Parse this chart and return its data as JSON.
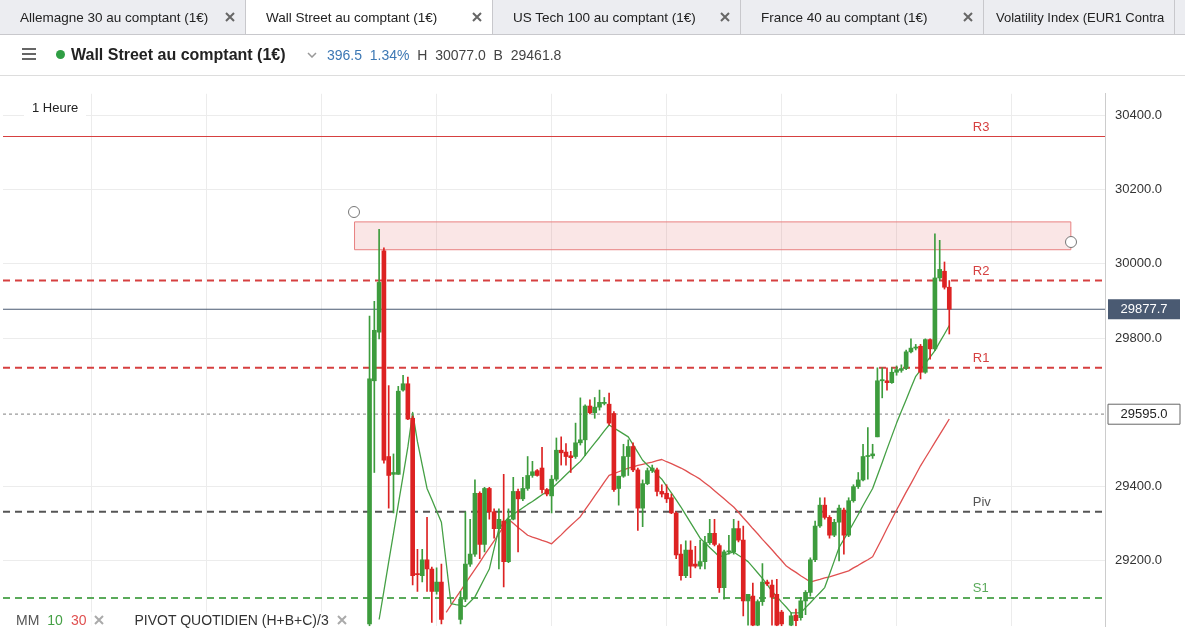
{
  "chart_data": {
    "type": "candlestick",
    "title": "Wall Street au comptant (1€)",
    "subtitle": "396.5 1.34% H 30077.0 B 29461.8",
    "annotations": [
      "Allemagne 30 au comptant (1€)",
      "Wall Street au comptant (1€)",
      "US Tech 100 au comptant (1€)",
      "France 40 au comptant (1€)",
      "Volatility Index (EUR1 Contra",
      "1 Heure",
      "MM",
      "PIVOT QUOTIDIEN (H+B+C)/3"
    ],
    "categories": [
      null,
      null,
      null,
      null,
      null,
      null,
      null,
      null,
      null,
      null,
      null,
      null,
      null,
      null,
      null,
      null,
      null,
      null,
      null,
      null,
      null,
      null,
      null,
      null,
      null,
      null,
      null,
      null,
      null,
      null,
      null,
      null,
      null,
      null,
      null,
      null,
      null,
      null,
      null,
      null,
      null,
      null,
      null,
      null,
      null,
      null,
      null,
      null,
      null,
      null,
      null,
      null,
      null,
      null,
      null,
      null,
      null,
      null,
      null,
      null,
      null,
      null,
      null,
      null,
      null,
      null,
      null,
      null,
      null,
      null,
      null,
      null,
      null,
      null,
      null,
      null,
      null,
      null,
      null,
      null,
      null,
      null,
      null,
      null,
      null,
      null,
      null,
      null,
      null,
      null,
      null,
      null,
      null,
      null,
      null,
      null,
      null,
      null,
      null,
      null,
      null,
      null,
      null,
      null,
      null,
      null,
      null,
      null,
      null,
      null,
      null,
      null,
      null,
      null,
      null,
      null,
      null,
      null,
      null,
      null,
      null,
      null,
      null,
      null,
      null,
      null,
      null,
      null,
      null,
      null,
      null,
      null,
      null,
      null,
      null,
      null,
      null,
      null,
      null,
      null,
      null,
      null,
      null,
      null,
      null,
      null,
      null,
      null,
      null,
      null,
      null,
      null,
      null,
      null,
      null,
      null,
      null,
      null,
      null,
      null,
      null,
      null,
      null,
      null,
      null,
      null,
      null,
      null,
      null,
      null,
      null,
      null,
      null,
      null,
      null,
      null,
      null,
      null,
      null,
      null,
      null,
      null,
      null,
      null,
      null,
      null,
      null,
      null,
      null,
      null,
      null,
      null,
      null,
      null,
      null,
      null,
      null,
      null,
      null,
      null,
      null,
      null,
      null,
      null,
      null,
      null,
      null,
      null,
      null,
      null,
      null,
      null,
      null,
      null,
      null,
      null,
      null,
      null,
      null,
      null,
      null,
      null,
      null,
      null,
      null,
      null,
      null,
      null,
      null,
      null
    ],
    "ohlc": [
      null,
      null,
      null,
      null,
      null,
      null,
      null,
      null,
      null,
      null,
      null,
      null,
      null,
      null,
      null,
      null,
      null,
      null,
      null,
      null,
      null,
      null,
      null,
      null,
      null,
      null,
      null,
      null,
      null,
      null,
      null,
      null,
      null,
      null,
      null,
      null,
      null,
      null,
      null,
      null,
      null,
      null,
      null,
      null,
      null,
      null,
      null,
      null,
      null,
      null,
      null,
      null,
      null,
      null,
      null,
      null,
      null,
      null,
      null,
      null,
      null,
      null,
      null,
      null,
      null,
      null,
      null,
      null,
      null,
      null,
      null,
      null,
      null,
      null,
      null,
      null,
      [
        29030,
        29859,
        29025,
        29690
      ],
      [
        29685,
        29899,
        29438,
        29821
      ],
      [
        29816,
        30093,
        29798,
        29950
      ],
      [
        30035,
        30043,
        29463,
        29471
      ],
      [
        29481,
        29672,
        29342,
        29430
      ],
      [
        29433,
        29488,
        29329,
        29438
      ],
      [
        29433,
        29670,
        29433,
        29657
      ],
      [
        29660,
        29700,
        29657,
        29677
      ],
      [
        29677,
        29695,
        29580,
        29582
      ],
      [
        29584,
        29590,
        29135,
        29160
      ],
      [
        29165,
        29231,
        29118,
        29163
      ],
      [
        29160,
        29231,
        29143,
        29203
      ],
      [
        29203,
        29317,
        29118,
        29178
      ],
      [
        29178,
        29183,
        29034,
        29118
      ],
      [
        29118,
        29181,
        29110,
        29143
      ],
      [
        29143,
        29191,
        29030,
        29042
      ],
      null,
      null,
      null,
      [
        29042,
        29118,
        29030,
        29097
      ],
      [
        29097,
        29332,
        29090,
        29191
      ],
      [
        29191,
        29312,
        29185,
        29218
      ],
      [
        29218,
        29418,
        29212,
        29382
      ],
      [
        29382,
        29386,
        29206,
        29244
      ],
      [
        29244,
        29398,
        29224,
        29395
      ],
      [
        29395,
        29398,
        29312,
        29332
      ],
      [
        29332,
        29340,
        29261,
        29287
      ],
      [
        29287,
        29340,
        29178,
        29312
      ],
      [
        29307,
        29433,
        29130,
        29198
      ],
      [
        29198,
        29340,
        29195,
        29312
      ],
      [
        29312,
        29425,
        29310,
        29387
      ],
      [
        29387,
        29393,
        29224,
        29367
      ],
      [
        29367,
        29425,
        29362,
        29395
      ],
      [
        29395,
        29481,
        29390,
        29430
      ],
      [
        29430,
        29468,
        29425,
        29440
      ],
      [
        29443,
        29446,
        29428,
        29430
      ],
      [
        29450,
        29506,
        29382,
        29392
      ],
      [
        29392,
        29395,
        29375,
        29380
      ],
      [
        29375,
        29430,
        29329,
        29420
      ],
      [
        29420,
        29531,
        29415,
        29498
      ],
      [
        29498,
        29534,
        29458,
        29491
      ],
      [
        29493,
        29516,
        29458,
        29481
      ],
      [
        29483,
        29495,
        29438,
        29478
      ],
      [
        29481,
        29571,
        29476,
        29518
      ],
      [
        29518,
        29639,
        29512,
        29526
      ],
      [
        29526,
        29620,
        29483,
        29617
      ],
      [
        29617,
        29634,
        29596,
        29599
      ],
      [
        29599,
        29640,
        29584,
        29614
      ],
      [
        29614,
        29660,
        29606,
        29627
      ],
      [
        29624,
        29640,
        29620,
        29627
      ],
      [
        29622,
        29652,
        29566,
        29571
      ],
      [
        29597,
        29602,
        29387,
        29392
      ],
      [
        29395,
        29428,
        29350,
        29428
      ],
      [
        29428,
        29514,
        29425,
        29481
      ],
      [
        29481,
        29526,
        29430,
        29508
      ],
      [
        29508,
        29518,
        29440,
        29445
      ],
      [
        29445,
        29450,
        29282,
        29342
      ],
      [
        29342,
        29418,
        29292,
        29408
      ],
      [
        29408,
        29450,
        29405,
        29443
      ],
      [
        29443,
        29458,
        29438,
        29450
      ],
      [
        29445,
        29450,
        29375,
        29387
      ],
      [
        29387,
        29405,
        29372,
        29380
      ],
      [
        29382,
        29405,
        29357,
        29367
      ],
      [
        29370,
        29380,
        29327,
        29329
      ],
      [
        29329,
        29332,
        29206,
        29216
      ],
      [
        29218,
        29244,
        29148,
        29160
      ],
      [
        29160,
        29254,
        29155,
        29229
      ],
      [
        29229,
        29254,
        29155,
        29186
      ],
      [
        29191,
        29239,
        29181,
        29186
      ],
      [
        29186,
        29256,
        29178,
        29198
      ],
      [
        29198,
        29266,
        29178,
        29249
      ],
      [
        29249,
        29312,
        29244,
        29274
      ],
      [
        29274,
        29312,
        29240,
        29244
      ],
      [
        29241,
        29246,
        29115,
        29128
      ],
      [
        29128,
        29229,
        29097,
        29224
      ],
      [
        29224,
        29269,
        29218,
        29226
      ],
      [
        29224,
        29312,
        29218,
        29287
      ],
      [
        29287,
        29307,
        29251,
        29256
      ],
      [
        29256,
        29294,
        29052,
        29092
      ],
      [
        29092,
        29110,
        29027,
        29110
      ],
      [
        29105,
        29140,
        29025,
        29027
      ],
      [
        29027,
        29095,
        29025,
        29090
      ],
      [
        29090,
        29193,
        29080,
        29143
      ],
      [
        29143,
        29148,
        29133,
        29138
      ],
      [
        29135,
        29148,
        29027,
        29102
      ],
      [
        29110,
        29150,
        29025,
        29027
      ],
      [
        29062,
        29067,
        29025,
        29030
      ],
      null,
      [
        29027,
        29060,
        29025,
        29052
      ],
      [
        29054,
        29070,
        29025,
        29039
      ],
      [
        29047,
        29102,
        29040,
        29092
      ],
      [
        29092,
        29120,
        29055,
        29115
      ],
      [
        29115,
        29208,
        29105,
        29203
      ],
      [
        29203,
        29307,
        29198,
        29294
      ],
      [
        29294,
        29370,
        29290,
        29350
      ],
      [
        29350,
        29370,
        29312,
        29317
      ],
      [
        29317,
        29322,
        29261,
        29269
      ],
      [
        29269,
        29312,
        29265,
        29304
      ],
      [
        29304,
        29350,
        29200,
        29342
      ],
      [
        29337,
        29342,
        29218,
        29269
      ],
      [
        29269,
        29370,
        29265,
        29362
      ],
      [
        29362,
        29405,
        29358,
        29400
      ],
      [
        29400,
        29438,
        29395,
        29418
      ],
      [
        29418,
        29514,
        29415,
        29481
      ],
      [
        29481,
        29559,
        29420,
        29483
      ],
      [
        29483,
        29514,
        29476,
        29488
      ],
      [
        29534,
        29720,
        29534,
        29685
      ],
      [
        29685,
        29720,
        29639,
        29688
      ],
      [
        29685,
        29720,
        29660,
        29680
      ],
      [
        29680,
        29720,
        29678,
        29708
      ],
      [
        29708,
        29725,
        29700,
        29715
      ],
      [
        29713,
        29728,
        29708,
        29718
      ],
      [
        29718,
        29768,
        29715,
        29763
      ],
      [
        29763,
        29798,
        29760,
        29773
      ],
      [
        29773,
        29783,
        29768,
        29776
      ],
      [
        29778,
        29783,
        29690,
        29708
      ],
      [
        29708,
        29798,
        29705,
        29796
      ],
      [
        29796,
        29798,
        29743,
        29771
      ],
      [
        29771,
        30081,
        29766,
        29962
      ],
      [
        29962,
        30063,
        29955,
        29985
      ],
      [
        29980,
        30005,
        29932,
        29937
      ],
      [
        29937,
        29955,
        29811,
        29877.7
      ],
      null,
      null,
      null,
      null,
      null,
      null,
      null,
      null,
      null,
      null,
      null,
      null,
      null,
      null,
      null,
      null,
      null,
      null,
      null,
      null,
      null,
      null,
      null,
      null,
      null,
      null,
      null,
      null,
      null,
      null,
      null,
      null
    ],
    "series": [
      {
        "type": "line",
        "name": "10",
        "color": "#45a045",
        "values": [
          null,
          null,
          null,
          null,
          null,
          null,
          null,
          null,
          null,
          null,
          null,
          null,
          null,
          null,
          null,
          null,
          null,
          null,
          null,
          null,
          null,
          null,
          null,
          null,
          null,
          null,
          null,
          null,
          null,
          null,
          null,
          null,
          null,
          null,
          null,
          null,
          null,
          null,
          null,
          null,
          null,
          null,
          null,
          null,
          null,
          null,
          null,
          null,
          null,
          null,
          null,
          null,
          null,
          null,
          null,
          null,
          null,
          null,
          null,
          null,
          null,
          null,
          null,
          null,
          null,
          null,
          null,
          null,
          null,
          null,
          null,
          null,
          null,
          null,
          null,
          null,
          null,
          null,
          29042,
          29119,
          29197,
          29274,
          29352,
          29429,
          29507,
          29600,
          29521,
          29458,
          29395,
          29365,
          29334,
          29304,
          29195,
          29085,
          29082,
          29080,
          29077,
          29090,
          29103,
          29128,
          29153,
          29178,
          29233,
          29287,
          29302,
          29317,
          29326,
          29334,
          29343,
          29352,
          29360,
          29369,
          29378,
          29386,
          29395,
          29407,
          29419,
          29432,
          29444,
          29456,
          29468,
          29484,
          29501,
          29517,
          29533,
          29550,
          29566,
          29558,
          29550,
          29542,
          29534,
          29513,
          29492,
          29471,
          29458,
          29446,
          29433,
          29420,
          29401,
          29383,
          29364,
          29345,
          29324,
          29303,
          29282,
          29261,
          29249,
          29236,
          29224,
          29211,
          29215,
          29220,
          29224,
          29215,
          29207,
          29198,
          29183,
          29168,
          29153,
          29136,
          29118,
          29104,
          29089,
          29075,
          29060,
          29060,
          29060,
          29074,
          29087,
          29101,
          29114,
          29128,
          29164,
          29200,
          29236,
          29258,
          29279,
          29302,
          29325,
          29349,
          29372,
          29395,
          29430,
          29465,
          29501,
          29536,
          29571,
          29603,
          29634,
          29666,
          29697,
          29714,
          29732,
          29749,
          29766,
          29789,
          29811,
          29834,
          null,
          null,
          null,
          null,
          null,
          null,
          null,
          null,
          null,
          null,
          null,
          null,
          null,
          null,
          null,
          null,
          null,
          null,
          null,
          null,
          null,
          null,
          null,
          null,
          null,
          null,
          null,
          null,
          null,
          null,
          null,
          null
        ]
      },
      {
        "type": "line",
        "name": "30",
        "color": "#e05050",
        "values": [
          null,
          null,
          null,
          null,
          null,
          null,
          null,
          null,
          null,
          null,
          null,
          null,
          null,
          null,
          null,
          null,
          null,
          null,
          null,
          null,
          null,
          null,
          null,
          null,
          null,
          null,
          null,
          null,
          null,
          null,
          null,
          null,
          null,
          null,
          null,
          null,
          null,
          null,
          null,
          null,
          null,
          null,
          null,
          null,
          null,
          null,
          null,
          null,
          null,
          null,
          null,
          null,
          null,
          null,
          null,
          null,
          null,
          null,
          null,
          null,
          null,
          null,
          null,
          null,
          null,
          null,
          null,
          null,
          null,
          null,
          null,
          null,
          null,
          null,
          null,
          null,
          null,
          null,
          null,
          null,
          null,
          null,
          null,
          null,
          null,
          null,
          null,
          null,
          null,
          null,
          null,
          null,
          29061,
          29081,
          29100,
          29119,
          29139,
          29158,
          29177,
          29196,
          29216,
          29235,
          29254,
          29273,
          29293,
          29312,
          29301,
          29290,
          29280,
          29269,
          29264,
          29260,
          29255,
          29251,
          29246,
          29258,
          29270,
          29283,
          29295,
          29307,
          29319,
          29338,
          29356,
          29375,
          29393,
          29412,
          29430,
          29435,
          29440,
          29445,
          29450,
          29453,
          29457,
          29460,
          29463,
          29466,
          29470,
          29473,
          29467,
          29462,
          29456,
          29450,
          29443,
          29435,
          29428,
          29420,
          29410,
          29400,
          29389,
          29378,
          29367,
          29356,
          29345,
          29331,
          29316,
          29302,
          29287,
          29273,
          29258,
          29244,
          29230,
          29215,
          29201,
          29186,
          29177,
          29169,
          29160,
          29152,
          29143,
          29147,
          29150,
          29154,
          29157,
          29161,
          29165,
          29169,
          29173,
          29181,
          29188,
          29196,
          29203,
          29211,
          29236,
          29261,
          29287,
          29312,
          29337,
          29361,
          29385,
          29408,
          29432,
          29456,
          29477,
          29498,
          29519,
          29540,
          29561,
          29582,
          null,
          null,
          null,
          null,
          null,
          null,
          null,
          null,
          null,
          null,
          null,
          null,
          null,
          null,
          null,
          null,
          null,
          null,
          null,
          null,
          null,
          null,
          null,
          null,
          null,
          null,
          null,
          null,
          null,
          null,
          null,
          null
        ]
      }
    ],
    "ylim": [
      29024,
      30458
    ],
    "yticks": [
      {
        "value": 29200,
        "label": "29200.0"
      },
      {
        "value": 29400,
        "label": "29400.0"
      },
      {
        "value": 29800,
        "label": "29800.0"
      },
      {
        "value": 30000,
        "label": "30000.0"
      },
      {
        "value": 30200,
        "label": "30200.0"
      },
      {
        "value": 30400,
        "label": "30400.0"
      }
    ],
    "tick_labels": "y",
    "grid": true,
    "ref_lines": [
      {
        "axis": "y",
        "value": 30343,
        "label": "R3",
        "color": "#d64040",
        "line_style": "solid"
      },
      {
        "axis": "y",
        "value": 29955,
        "label": "R2",
        "color": "#d64040",
        "line_style": "dashed"
      },
      {
        "axis": "y",
        "value": 29720,
        "label": "R1",
        "color": "#d64040",
        "line_style": "dashed"
      },
      {
        "axis": "y",
        "value": 29332,
        "label": "Piv",
        "color": "#555555",
        "line_style": "dashed"
      },
      {
        "axis": "y",
        "value": 29100,
        "label": "S1",
        "color": "#5aaa5a",
        "line_style": "dashed"
      },
      {
        "axis": "y",
        "value": 29877.7,
        "label": "29877.7",
        "color": "#4a5a72",
        "line_style": "solid"
      },
      {
        "axis": "y",
        "value": 29595,
        "label": "29595.0",
        "color": "#999999",
        "line_style": "dotted"
      }
    ],
    "bands": [
      {
        "axis": "y",
        "from": 30038,
        "to": 30113,
        "color": "#e88080"
      }
    ]
  }
}
